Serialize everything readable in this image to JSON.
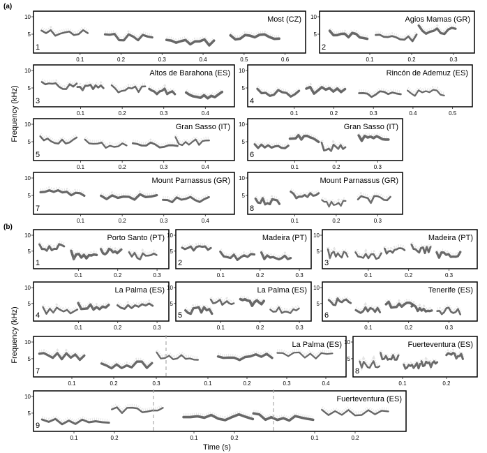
{
  "figure": {
    "section_a_label": "(a)",
    "section_b_label": "(b)",
    "ylabel": "Frequency (kHz)",
    "xlabel": "Time (s)",
    "yticks": [
      "10",
      "5"
    ],
    "panels": [
      {
        "label": "Most (CZ)",
        "number": "1",
        "xticks": [
          "0.1",
          "0.2",
          "0.3",
          "0.4",
          "0.5",
          "0.6"
        ],
        "xmax": 0.65
      },
      {
        "label": "Agios Mamas (GR)",
        "number": "2",
        "xticks": [
          "0.1",
          "0.2",
          "0.3"
        ],
        "xmax": 0.35
      },
      {
        "label": "Altos de Barahona (ES)",
        "number": "3",
        "xticks": [
          "0.1",
          "0.2",
          "0.3",
          "0.4"
        ],
        "xmax": 0.47
      },
      {
        "label": "Rincón de Ademuz (ES)",
        "number": "4",
        "xticks": [
          "0.1",
          "0.2",
          "0.3",
          "0.4",
          "0.5"
        ],
        "xmax": 0.55
      },
      {
        "label": "Gran Sasso (IT)",
        "number": "5",
        "xticks": [
          "0.1",
          "0.2",
          "0.3",
          "0.4"
        ],
        "xmax": 0.47
      },
      {
        "label": "Gran Sasso (IT)",
        "number": "6",
        "xticks": [
          "0.1",
          "0.2",
          "0.3"
        ],
        "xmax": 0.36
      },
      {
        "label": "Mount Parnassus (GR)",
        "number": "7",
        "xticks": [
          "0.1",
          "0.2",
          "0.3",
          "0.4"
        ],
        "xmax": 0.47
      },
      {
        "label": "Mount Parnassus (GR)",
        "number": "8",
        "xticks": [
          "0.1",
          "0.2",
          "0.3"
        ],
        "xmax": 0.36
      },
      {
        "label": "Porto Santo (PT)",
        "number": "1",
        "xticks": [
          "0.1",
          "0.2",
          "0.3"
        ],
        "xmax": 0.33
      },
      {
        "label": "Madeira (PT)",
        "number": "2",
        "xticks": [
          "0.1",
          "0.2",
          "0.3"
        ],
        "xmax": 0.33
      },
      {
        "label": "Madeira (PT)",
        "number": "3",
        "xticks": [
          "0.1",
          "0.2",
          "0.3"
        ],
        "xmax": 0.37
      },
      {
        "label": "La Palma (ES)",
        "number": "4",
        "xticks": [
          "0.1",
          "0.2",
          "0.3"
        ],
        "xmax": 0.33
      },
      {
        "label": "La Palma (ES)",
        "number": "5",
        "xticks": [
          "0.1",
          "0.2",
          "0.3"
        ],
        "xmax": 0.33
      },
      {
        "label": "Tenerife (ES)",
        "number": "6",
        "xticks": [
          "0.1",
          "0.2",
          "0.3"
        ],
        "xmax": 0.37
      },
      {
        "label": "La Palma (ES)",
        "number": "7",
        "xticks": [
          "0.1",
          "0.2",
          "0.3",
          "0.1",
          "0.2",
          "0.3",
          "0.4"
        ],
        "xmax": 0.78
      },
      {
        "label": "Fuerteventura (ES)",
        "number": "8",
        "xticks": [
          "0.1",
          "0.2"
        ],
        "xmax": 0.27
      },
      {
        "label": "Fuerteventura (ES)",
        "number": "9",
        "xticks": [
          "0.1",
          "0.2",
          "0.1",
          "0.2",
          "0.1",
          "0.2"
        ],
        "xmax": 0.85
      }
    ]
  }
}
